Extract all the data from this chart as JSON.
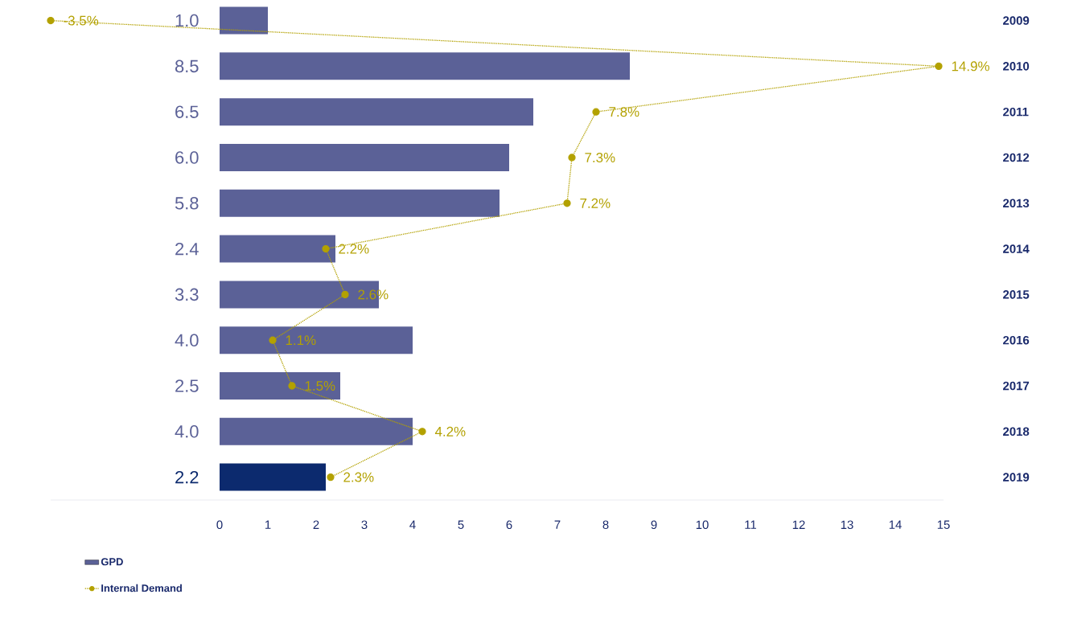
{
  "chart_data": {
    "type": "bar",
    "orientation": "horizontal",
    "categories": [
      "2009",
      "2010",
      "2011",
      "2012",
      "2013",
      "2014",
      "2015",
      "2016",
      "2017",
      "2018",
      "2019"
    ],
    "series": [
      {
        "name": "GPD",
        "type": "bar",
        "colors": [
          "#5b6197",
          "#5b6197",
          "#5b6197",
          "#5b6197",
          "#5b6197",
          "#5b6197",
          "#5b6197",
          "#5b6197",
          "#5b6197",
          "#5b6197",
          "#0c2a6e"
        ],
        "values": [
          1.0,
          8.5,
          6.5,
          6.0,
          5.8,
          2.4,
          3.3,
          4.0,
          2.5,
          4.0,
          2.2
        ],
        "value_labels": [
          "1.0",
          "8.5",
          "6.5",
          "6.0",
          "5.8",
          "2.4",
          "3.3",
          "4.0",
          "2.5",
          "4.0",
          "2.2"
        ]
      },
      {
        "name": "Internal Demand",
        "type": "line",
        "color": "#b3a100",
        "marker": "circle",
        "line_style": "dotted",
        "values": [
          -3.5,
          14.9,
          7.8,
          7.3,
          7.2,
          2.2,
          2.6,
          1.1,
          1.5,
          4.2,
          2.3
        ],
        "value_labels": [
          "-3.5%",
          "14.9%",
          "7.8%",
          "7.3%",
          "7.2%",
          "2.2%",
          "2.6%",
          "1.1%",
          "1.5%",
          "4.2%",
          "2.3%"
        ]
      }
    ],
    "xlim": [
      -3.5,
      15
    ],
    "xticks": [
      0,
      1,
      2,
      3,
      4,
      5,
      6,
      7,
      8,
      9,
      10,
      11,
      12,
      13,
      14,
      15
    ],
    "legend": "bottom left"
  }
}
